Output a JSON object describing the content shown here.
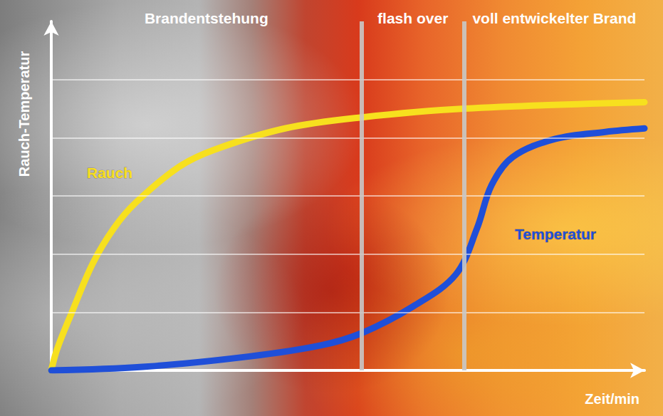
{
  "chart_data": {
    "type": "line",
    "xlabel": "Zeit/min",
    "ylabel": "Rauch-Temperatur",
    "xlim": [
      0,
      10
    ],
    "ylim": [
      0,
      6
    ],
    "yticks": [
      1,
      2,
      3,
      4,
      5
    ],
    "grid": true,
    "tick_labels": false,
    "phases": [
      {
        "label": "Brandentstehung",
        "start": 0,
        "end": 5.23
      },
      {
        "label": "flash over",
        "start": 5.23,
        "end": 6.96
      },
      {
        "label": "voll entwickelter Brand",
        "start": 6.96,
        "end": 10
      }
    ],
    "series": [
      {
        "name": "Rauch",
        "color": "#f7e01e",
        "x": [
          0,
          0.1,
          0.34,
          0.7,
          1.06,
          1.42,
          2.14,
          2.74,
          3.94,
          5.23,
          6.96,
          10
        ],
        "values": [
          0,
          0.37,
          0.98,
          1.84,
          2.45,
          2.88,
          3.49,
          3.79,
          4.16,
          4.35,
          4.5,
          4.61
        ]
      },
      {
        "name": "Temperatur",
        "color": "#1f4fd8",
        "x": [
          0,
          1.54,
          3.34,
          4.54,
          5.23,
          6.1,
          6.82,
          7.18,
          7.42,
          7.78,
          8.5,
          9.34,
          10
        ],
        "values": [
          0,
          0.06,
          0.24,
          0.43,
          0.64,
          1.1,
          1.65,
          2.45,
          3.18,
          3.67,
          3.98,
          4.1,
          4.16
        ]
      }
    ]
  }
}
